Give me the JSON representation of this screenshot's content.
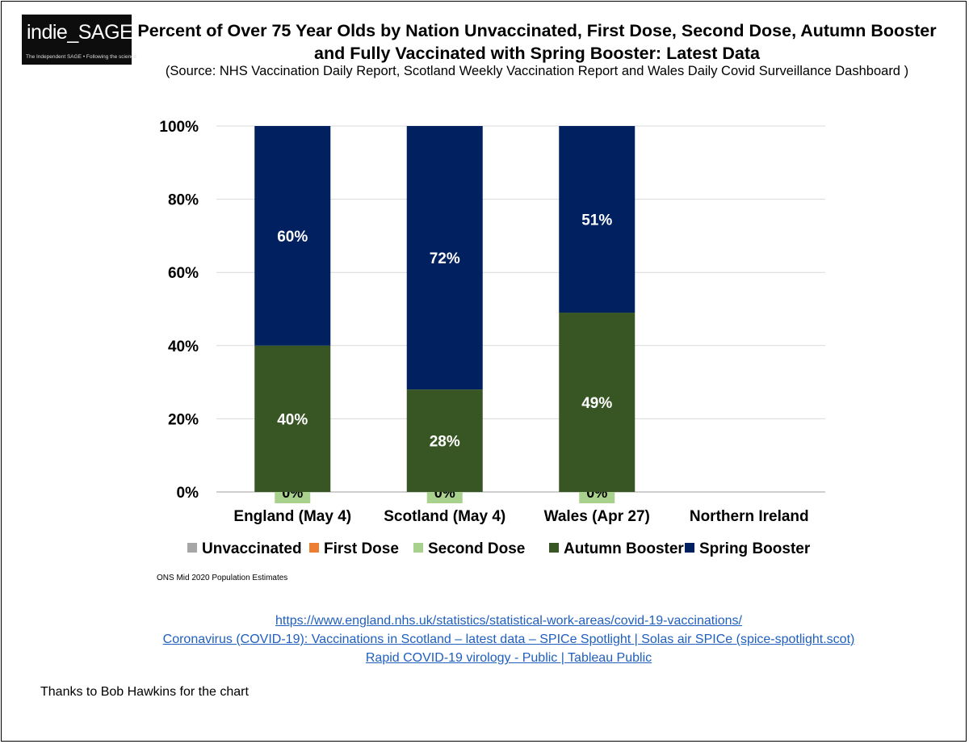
{
  "logo": {
    "main": "indie_SAGE",
    "tagline": "The Independent SAGE • Following the science"
  },
  "header": {
    "title": "Percent of Over 75 Year Olds by Nation Unvaccinated, First Dose, Second Dose, Autumn Booster and Fully Vaccinated with Spring Booster: Latest Data",
    "source": "(Source: NHS Vaccination Daily Report, Scotland Weekly Vaccination Report and Wales Daily Covid Surveillance Dashboard )"
  },
  "chart_data": {
    "type": "bar",
    "stacked": true,
    "title": "Percent of Over 75 Year Olds by Nation Unvaccinated, First Dose, Second Dose, Autumn Booster and Fully Vaccinated with Spring Booster: Latest Data",
    "xlabel": "",
    "ylabel": "",
    "ylim": [
      0,
      100
    ],
    "yticks": [
      "0%",
      "20%",
      "40%",
      "60%",
      "80%",
      "100%"
    ],
    "categories": [
      "England (May 4)",
      "Scotland (May 4)",
      "Wales (Apr 27)",
      "Northern Ireland"
    ],
    "series": [
      {
        "name": "Unvaccinated",
        "color": "#a6a6a6",
        "values": [
          0,
          0,
          0,
          0
        ],
        "labels": [
          null,
          null,
          null,
          null
        ]
      },
      {
        "name": "First Dose",
        "color": "#ed7d31",
        "values": [
          0,
          0,
          0,
          0
        ],
        "labels": [
          null,
          null,
          null,
          null
        ]
      },
      {
        "name": "Second Dose",
        "color": "#a9d18e",
        "values": [
          0,
          0,
          0,
          0
        ],
        "labels": [
          "0%",
          "0%",
          "0%",
          null
        ]
      },
      {
        "name": "Autumn Booster",
        "color": "#375623",
        "values": [
          40,
          28,
          49,
          0
        ],
        "labels": [
          "40%",
          "28%",
          "49%",
          null
        ]
      },
      {
        "name": "Spring Booster",
        "color": "#002060",
        "values": [
          60,
          72,
          51,
          0
        ],
        "labels": [
          "60%",
          "72%",
          "51%",
          null
        ]
      }
    ],
    "legend_position": "bottom",
    "grid": true
  },
  "footnote": "ONS Mid 2020 Population  Estimates",
  "links": [
    "https://www.england.nhs.uk/statistics/statistical-work-areas/covid-19-vaccinations/",
    "Coronavirus (COVID-19): Vaccinations in Scotland – latest data – SPICe Spotlight | Solas air SPICe (spice-spotlight.scot)",
    "Rapid COVID-19 virology - Public | Tableau Public"
  ],
  "credit": "Thanks to Bob Hawkins for the chart"
}
